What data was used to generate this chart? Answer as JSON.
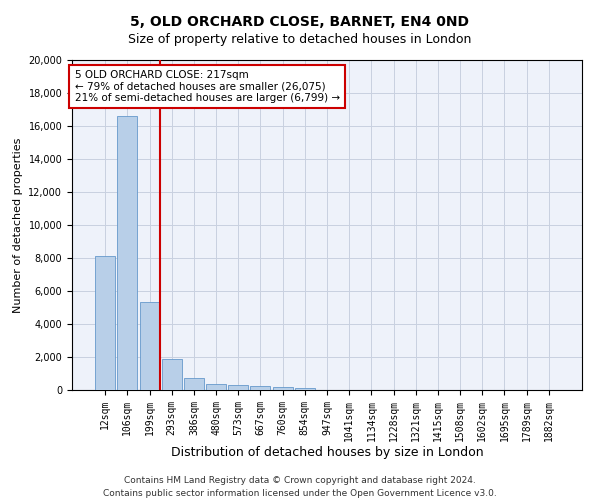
{
  "title1": "5, OLD ORCHARD CLOSE, BARNET, EN4 0ND",
  "title2": "Size of property relative to detached houses in London",
  "xlabel": "Distribution of detached houses by size in London",
  "ylabel": "Number of detached properties",
  "bar_labels": [
    "12sqm",
    "106sqm",
    "199sqm",
    "293sqm",
    "386sqm",
    "480sqm",
    "573sqm",
    "667sqm",
    "760sqm",
    "854sqm",
    "947sqm",
    "1041sqm",
    "1134sqm",
    "1228sqm",
    "1321sqm",
    "1415sqm",
    "1508sqm",
    "1602sqm",
    "1695sqm",
    "1789sqm",
    "1882sqm"
  ],
  "bar_values": [
    8100,
    16600,
    5350,
    1850,
    700,
    370,
    280,
    230,
    200,
    150,
    0,
    0,
    0,
    0,
    0,
    0,
    0,
    0,
    0,
    0,
    0
  ],
  "bar_color": "#b8cfe8",
  "bar_edge_color": "#6699cc",
  "vline_pos": 2.45,
  "annotation_text": "5 OLD ORCHARD CLOSE: 217sqm\n← 79% of detached houses are smaller (26,075)\n21% of semi-detached houses are larger (6,799) →",
  "annotation_box_color": "#ffffff",
  "annotation_box_edge": "#cc0000",
  "vline_color": "#cc0000",
  "ylim": [
    0,
    20000
  ],
  "yticks": [
    0,
    2000,
    4000,
    6000,
    8000,
    10000,
    12000,
    14000,
    16000,
    18000,
    20000
  ],
  "footer_line1": "Contains HM Land Registry data © Crown copyright and database right 2024.",
  "footer_line2": "Contains public sector information licensed under the Open Government Licence v3.0.",
  "bg_color": "#eef2fa",
  "grid_color": "#c8d0e0",
  "title1_fontsize": 10,
  "title2_fontsize": 9,
  "ylabel_fontsize": 8,
  "xlabel_fontsize": 9,
  "tick_fontsize": 7,
  "footer_fontsize": 6.5
}
